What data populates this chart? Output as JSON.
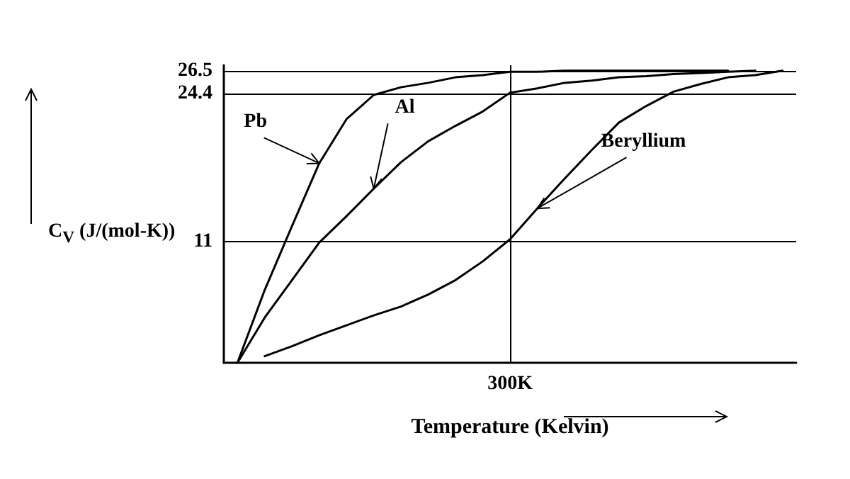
{
  "chart_data": {
    "type": "line",
    "xlabel": "Temperature (Kelvin)",
    "ylabel": "C$_{V}$ (J/(mol-K))",
    "categories": [
      null,
      null,
      null,
      null,
      null,
      null,
      null,
      null,
      null,
      null,
      "300K",
      null,
      null,
      null,
      null,
      null,
      null,
      null,
      null,
      null,
      null
    ],
    "ylim": [
      0,
      27
    ],
    "yticks": [
      11,
      24.4,
      26.5
    ],
    "grid": "y",
    "marker": "none",
    "line_style": "solid",
    "series": [
      {
        "color": "#000000",
        "values": [
          0,
          6.6,
          12.4,
          18.1,
          22.1,
          24.3,
          25.0,
          25.4,
          25.9,
          26.1,
          26.4,
          26.4,
          26.5,
          26.5,
          26.5,
          26.5,
          26.5,
          26.5,
          26.5,
          null,
          null
        ]
      },
      {
        "color": "#000000",
        "values": [
          0,
          4.1,
          7.5,
          10.9,
          13.3,
          15.8,
          18.2,
          20.1,
          21.5,
          22.8,
          24.5,
          24.9,
          25.4,
          25.6,
          25.9,
          26.0,
          26.2,
          26.3,
          26.4,
          26.5,
          null
        ]
      },
      {
        "color": "#000000",
        "values": [
          null,
          0.6,
          1.5,
          2.5,
          3.4,
          4.3,
          5.1,
          6.2,
          7.5,
          9.2,
          11.2,
          14.0,
          16.7,
          19.3,
          21.8,
          23.3,
          24.6,
          25.3,
          25.9,
          26.1,
          26.5
        ]
      }
    ],
    "ref_lines": [
      {
        "axis": "x",
        "value": "300K",
        "color": "#000000",
        "line_style": "solid"
      }
    ],
    "annotations": [
      "Pb",
      "Al",
      "Beryllium"
    ]
  }
}
